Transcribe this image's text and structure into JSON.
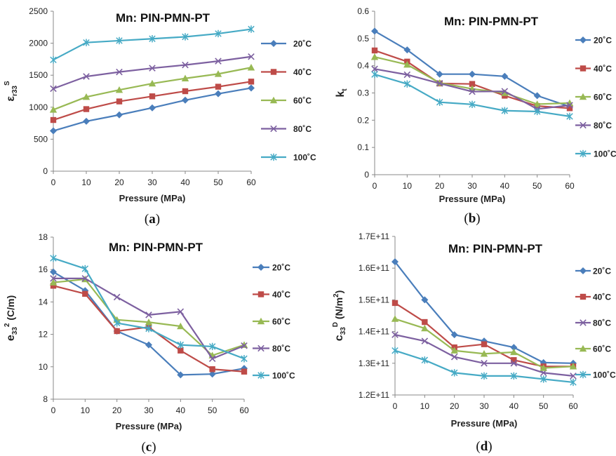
{
  "colors": {
    "20C": "#4a7ebb",
    "40C": "#be4b48",
    "60C": "#98b954",
    "80C": "#7d60a0",
    "100C": "#46aac5",
    "axis": "#888888"
  },
  "markers": {
    "20C": "diamond",
    "40C": "square",
    "60C": "triangle",
    "80C": "x",
    "100C": "star"
  },
  "chart_data": [
    {
      "type": "line",
      "title": "Mn: PIN-PMN-PT",
      "caption": {
        "open": "(",
        "letter": "a",
        "close": ")"
      },
      "xlabel": "Pressure (MPa)",
      "ylabel": {
        "main": "ε",
        "sub": "r33",
        "sup": "S"
      },
      "x": [
        0,
        10,
        20,
        30,
        40,
        50,
        60
      ],
      "xticks": [
        "0",
        "10",
        "20",
        "30",
        "40",
        "50",
        "60"
      ],
      "ylim": [
        0,
        2500
      ],
      "yticks": [
        0,
        500,
        1000,
        1500,
        2000,
        2500
      ],
      "ytick_labels": [
        "0",
        "500",
        "1000",
        "1500",
        "2000",
        "2500"
      ],
      "legend_position": "right",
      "series": [
        {
          "name": "20˚C",
          "key": "20C",
          "values": [
            630,
            780,
            880,
            990,
            1110,
            1210,
            1300
          ]
        },
        {
          "name": "40˚C",
          "key": "40C",
          "values": [
            800,
            970,
            1090,
            1170,
            1250,
            1320,
            1400
          ]
        },
        {
          "name": "60˚C",
          "key": "60C",
          "values": [
            960,
            1160,
            1270,
            1370,
            1450,
            1520,
            1620
          ]
        },
        {
          "name": "80˚C",
          "key": "80C",
          "values": [
            1290,
            1480,
            1550,
            1610,
            1660,
            1720,
            1790
          ]
        },
        {
          "name": "100˚C",
          "key": "100C",
          "values": [
            1740,
            2010,
            2040,
            2070,
            2100,
            2150,
            2220
          ]
        }
      ]
    },
    {
      "type": "line",
      "title": "Mn: PIN-PMN-PT",
      "caption": {
        "open": "(",
        "letter": "b",
        "close": ")"
      },
      "xlabel": "Pressure (MPa)",
      "ylabel": {
        "main": "k",
        "sub": "t",
        "sup": ""
      },
      "x": [
        0,
        10,
        20,
        30,
        40,
        50,
        60
      ],
      "xticks": [
        "0",
        "10",
        "20",
        "30",
        "40",
        "50",
        "60"
      ],
      "ylim": [
        0,
        0.6
      ],
      "yticks": [
        0,
        0.1,
        0.2,
        0.3,
        0.4,
        0.5,
        0.6
      ],
      "ytick_labels": [
        "0",
        "0.1",
        "0.2",
        "0.3",
        "0.4",
        "0.5",
        "0.6"
      ],
      "legend_position": "right",
      "series": [
        {
          "name": "20˚C",
          "key": "20C",
          "values": [
            0.527,
            0.458,
            0.369,
            0.369,
            0.361,
            0.29,
            0.25
          ]
        },
        {
          "name": "40˚C",
          "key": "40C",
          "values": [
            0.456,
            0.415,
            0.335,
            0.333,
            0.29,
            0.252,
            0.244
          ]
        },
        {
          "name": "60˚C",
          "key": "60C",
          "values": [
            0.432,
            0.404,
            0.337,
            0.315,
            0.3,
            0.259,
            0.263
          ]
        },
        {
          "name": "80˚C",
          "key": "80C",
          "values": [
            0.388,
            0.367,
            0.335,
            0.305,
            0.306,
            0.241,
            0.255
          ]
        },
        {
          "name": "100˚C",
          "key": "100C",
          "values": [
            0.368,
            0.333,
            0.266,
            0.258,
            0.235,
            0.232,
            0.214
          ]
        }
      ]
    },
    {
      "type": "line",
      "title": "Mn: PIN-PMN-PT",
      "caption": {
        "open": "(",
        "letter": "c",
        "close": ")"
      },
      "xlabel": "Pressure (MPa)",
      "ylabel": {
        "main": "e",
        "sub": "33",
        "rest": " (C/m",
        "sup": "2",
        "end": ")"
      },
      "x": [
        0,
        10,
        20,
        30,
        40,
        50,
        60
      ],
      "xticks": [
        "0",
        "10",
        "20",
        "30",
        "40",
        "50",
        "60"
      ],
      "ylim": [
        8,
        18
      ],
      "yticks": [
        8,
        10,
        12,
        14,
        16,
        18
      ],
      "ytick_labels": [
        "8",
        "10",
        "12",
        "14",
        "16",
        "18"
      ],
      "legend_position": "right",
      "series": [
        {
          "name": "20˚C",
          "key": "20C",
          "values": [
            15.85,
            14.7,
            12.2,
            11.35,
            9.5,
            9.55,
            9.9
          ]
        },
        {
          "name": "40˚C",
          "key": "40C",
          "values": [
            15.0,
            14.5,
            12.2,
            12.45,
            11.0,
            9.85,
            9.7
          ]
        },
        {
          "name": "60˚C",
          "key": "60C",
          "values": [
            15.2,
            15.4,
            12.9,
            12.75,
            12.5,
            10.7,
            11.35
          ]
        },
        {
          "name": "80˚C",
          "key": "80C",
          "values": [
            15.45,
            15.45,
            14.3,
            13.2,
            13.4,
            10.5,
            11.3
          ]
        },
        {
          "name": "100˚C",
          "key": "100C",
          "values": [
            16.7,
            16.05,
            12.7,
            12.35,
            11.35,
            11.25,
            10.5
          ]
        }
      ]
    },
    {
      "type": "line",
      "title": "Mn: PIN-PMN-PT",
      "caption": {
        "open": "(",
        "letter": "d",
        "close": ")"
      },
      "xlabel": "Pressure (MPa)",
      "ylabel": {
        "main": "c",
        "sub": "33",
        "sup": "D",
        "rest": " (N/m",
        "sup2": "2",
        "end": ")"
      },
      "x": [
        0,
        10,
        20,
        30,
        40,
        50,
        60
      ],
      "xticks": [
        "0",
        "10",
        "20",
        "30",
        "40",
        "50",
        "60"
      ],
      "ylim": [
        120000000000.0,
        170000000000.0
      ],
      "yticks": [
        120000000000.0,
        130000000000.0,
        140000000000.0,
        150000000000.0,
        160000000000.0,
        170000000000.0
      ],
      "ytick_labels": [
        "1.2E+11",
        "1.3E+11",
        "1.4E+11",
        "1.5E+11",
        "1.6E+11",
        "1.7E+11"
      ],
      "legend_position": "right",
      "series": [
        {
          "name": "20˚C",
          "key": "20C",
          "values": [
            162000000000.0,
            150000000000.0,
            139000000000.0,
            137000000000.0,
            135000000000.0,
            130200000000.0,
            130000000000.0
          ]
        },
        {
          "name": "40˚C",
          "key": "40C",
          "values": [
            149000000000.0,
            143000000000.0,
            135000000000.0,
            136000000000.0,
            131000000000.0,
            129000000000.0,
            129000000000.0
          ]
        },
        {
          "name": "80˚C",
          "key": "80C",
          "values": [
            139000000000.0,
            137000000000.0,
            132000000000.0,
            130000000000.0,
            130000000000.0,
            127000000000.0,
            126000000000.0
          ]
        },
        {
          "name": "60˚C",
          "key": "60C",
          "values": [
            144000000000.0,
            141000000000.0,
            134000000000.0,
            133000000000.0,
            133500000000.0,
            128500000000.0,
            129000000000.0
          ]
        },
        {
          "name": "100˚C",
          "key": "100C",
          "values": [
            134000000000.0,
            131000000000.0,
            127000000000.0,
            126000000000.0,
            126000000000.0,
            125000000000.0,
            124000000000.0
          ]
        }
      ]
    }
  ]
}
